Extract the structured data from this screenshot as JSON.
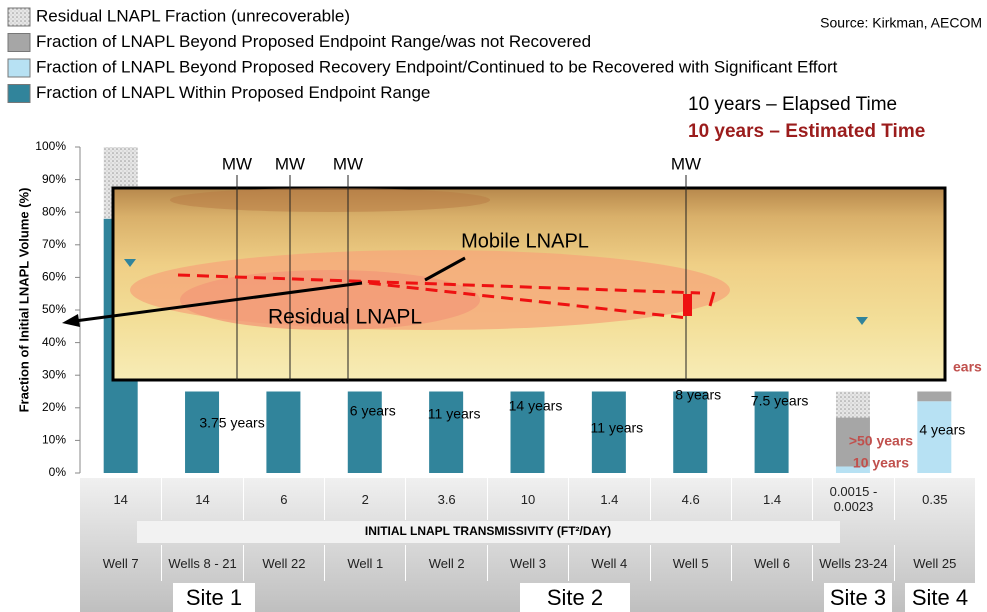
{
  "chart_data": {
    "type": "stacked-bar",
    "legend": "top-left",
    "source": "Source: Kirkman, AECOM",
    "key_elapsed": "10 years – Elapsed Time",
    "key_estimated": "10 years – Estimated Time",
    "y_label": "Fraction of  Initial LNAPL Volume (%)",
    "x_label": "INITIAL LNAPL TRANSMISSIVITY (FT²/DAY)",
    "categories": [
      "Well 7",
      "Wells 8 - 21",
      "Well 22",
      "Well 1",
      "Well 2",
      "Well 3",
      "Well 4",
      "Well 5",
      "Well 6",
      "Wells 23-24",
      "Well 25"
    ],
    "transmissivity": [
      "14",
      "14",
      "6",
      "2",
      "3.6",
      "10",
      "1.4",
      "4.6",
      "1.4",
      "0.0015 - 0.0023",
      "0.35"
    ],
    "sites": [
      "Site 1",
      "Site 2",
      "Site 3",
      "Site 4"
    ],
    "series": [
      {
        "name": "Residual LNAPL Fraction (unrecoverable)",
        "color": "#d9d9d9",
        "values": [
          22,
          0,
          0,
          0,
          0,
          0,
          0,
          0,
          0,
          8,
          0
        ]
      },
      {
        "name": "Fraction of LNAPL Beyond Proposed Endpoint Range/was not Recovered",
        "color": "#a6a6a6",
        "values": [
          0,
          0,
          0,
          0,
          0,
          0,
          0,
          0,
          0,
          15,
          3
        ]
      },
      {
        "name": "Fraction of LNAPL Beyond Proposed Recovery Endpoint/Continued to be Recovered with Significant Effort",
        "color": "#b7e1f3",
        "values": [
          0,
          0,
          0,
          0,
          0,
          0,
          0,
          0,
          0,
          2,
          22
        ]
      },
      {
        "name": "Fraction of LNAPL Within Proposed Endpoint Range",
        "color": "#31849b",
        "values": [
          78,
          25,
          25,
          25,
          25,
          25,
          25,
          25,
          25,
          0,
          0
        ]
      }
    ],
    "elapsed_labels": [
      null,
      "3.75 years",
      null,
      "6 years",
      "11 years",
      "14 years",
      "11 years",
      "8 years",
      "7.5 years",
      null,
      "4 years"
    ],
    "estimated_labels": [
      null,
      null,
      null,
      null,
      null,
      null,
      null,
      null,
      null,
      [
        ">50 years",
        "10 years"
      ],
      null
    ],
    "estimated_cut_label": "ears",
    "ylim": [
      0,
      100
    ],
    "yticks": [
      {
        "value": 0,
        "label": "0%"
      },
      {
        "value": 10,
        "label": "10%"
      },
      {
        "value": 20,
        "label": "20%"
      },
      {
        "value": 30,
        "label": "30%"
      },
      {
        "value": 40,
        "label": "40%"
      },
      {
        "value": 50,
        "label": "50%"
      },
      {
        "value": 60,
        "label": "60%"
      },
      {
        "value": 70,
        "label": "70%"
      },
      {
        "value": 80,
        "label": "80%"
      },
      {
        "value": 90,
        "label": "90%"
      },
      {
        "value": 100,
        "label": "100%"
      }
    ],
    "inset": {
      "wells": [
        "MW",
        "MW",
        "MW",
        "MW"
      ],
      "mobile": "Mobile LNAPL",
      "residual": "Residual LNAPL"
    }
  }
}
